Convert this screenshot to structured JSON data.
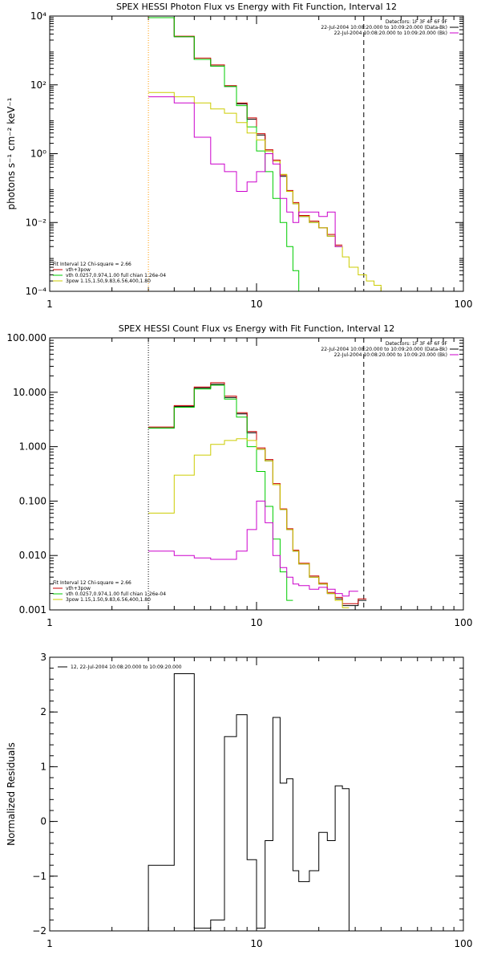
{
  "chart_data": [
    {
      "type": "line",
      "subtype": "histogram-step",
      "title": "SPEX HESSI Photon Flux vs Energy with Fit Function, Interval 12",
      "ylabel": "photons s⁻¹ cm⁻² keV⁻¹",
      "xlabel": "",
      "xscale": "log",
      "yscale": "log",
      "xlim": [
        1,
        100
      ],
      "ylim": [
        0.0001,
        10000
      ],
      "x_tick_labels": [
        "1",
        "10",
        "100"
      ],
      "y_tick_labels": [
        "10⁻⁴",
        "10⁻²",
        "10⁰",
        "10²",
        "10⁴"
      ],
      "info_lines": [
        "Detectors: 1F 3F 4F 6F 9F",
        "22-Jul-2004 10:08:20.000 to 10:09:20.000 (Data-Bk)",
        "22-Jul-2004 10:08:20.000 to 10:09:20.000 (Bk)"
      ],
      "info_colors": [
        "#000000",
        "#000000",
        "#cc00cc"
      ],
      "legend_lines": [
        "Fit Interval 12   Chi-square = 2.66",
        "vth+3pow",
        "vth 0.0257,0.974,1.00  full chian 1.26e-04",
        "3pow 1.15,1.50,9.83,6.56,400,1.80"
      ],
      "legend_colors": [
        "#000000",
        "#cc0000",
        "#00cc00",
        "#cccc00"
      ],
      "vlines": [
        {
          "x": 3,
          "style": "dotted",
          "color": "#ff9900"
        },
        {
          "x": 33,
          "style": "dashed",
          "color": "#000000"
        }
      ],
      "edges": [
        3,
        4,
        5,
        6,
        7,
        8,
        9,
        10,
        11,
        12,
        13,
        14,
        15,
        16,
        18,
        20,
        22,
        24,
        26,
        28,
        31,
        34,
        37,
        40,
        45,
        50,
        60
      ],
      "series": [
        {
          "color": "#000000",
          "values": [
            9000,
            2500,
            550,
            350,
            90,
            28,
            10,
            3.5,
            1.2,
            0.6,
            0.22,
            0.08,
            0.035,
            0.015,
            0.01,
            0.007,
            0.004,
            0.002
          ]
        },
        {
          "color": "#cc0000",
          "values": [
            9000,
            2600,
            600,
            380,
            95,
            30,
            11,
            3.8,
            1.3,
            0.65,
            0.24,
            0.085,
            0.038,
            0.016,
            0.011,
            0.007,
            0.0045,
            0.0022
          ]
        },
        {
          "color": "#00cc00",
          "values": [
            9000,
            2500,
            550,
            350,
            90,
            25,
            6,
            1.2,
            0.3,
            0.05,
            0.01,
            0.002,
            0.0004,
            0.0001
          ]
        },
        {
          "color": "#cccc00",
          "values": [
            60,
            45,
            30,
            20,
            15,
            8,
            4,
            2.5,
            1.2,
            0.6,
            0.25,
            0.08,
            0.035,
            0.015,
            0.01,
            0.007,
            0.004,
            0.002,
            0.001,
            0.0005,
            0.0003,
            0.0002,
            0.00015,
            0.0001,
            7e-05,
            5e-05
          ]
        },
        {
          "color": "#cc00cc",
          "values": [
            45,
            30,
            3,
            0.5,
            0.3,
            0.08,
            0.15,
            0.3,
            1,
            0.5,
            0.05,
            0.02,
            0.01,
            0.02,
            0.02,
            0.015,
            0.02,
            0.002
          ]
        }
      ]
    },
    {
      "type": "line",
      "subtype": "histogram-step",
      "title": "SPEX HESSI Count Flux vs Energy with Fit Function, Interval 12",
      "ylabel": "",
      "xlabel": "",
      "xscale": "log",
      "yscale": "log",
      "xlim": [
        1,
        100
      ],
      "ylim": [
        0.001,
        100
      ],
      "x_tick_labels": [
        "1",
        "10",
        "100"
      ],
      "y_tick_labels": [
        "0.001",
        "0.010",
        "0.100",
        "1.000",
        "10.000",
        "100.000"
      ],
      "info_lines": [
        "Detectors: 1F 3F 4F 6F 9F",
        "22-Jul-2004 10:08:20.000 to 10:09:20.000 (Data-Bk)",
        "22-Jul-2004 10:08:20.000 to 10:09:20.000 (Bk)"
      ],
      "info_colors": [
        "#000000",
        "#000000",
        "#cc00cc"
      ],
      "legend_lines": [
        "Fit Interval 12   Chi-square = 2.66",
        "vth+3pow",
        "vth 0.0257,0.974,1.00  full chian 1.26e-04",
        "3pow 1.15,1.50,9.83,6.56,400,1.80"
      ],
      "legend_colors": [
        "#000000",
        "#cc0000",
        "#00cc00",
        "#cccc00"
      ],
      "vlines": [
        {
          "x": 3,
          "style": "dotted",
          "color": "#000000"
        },
        {
          "x": 33,
          "style": "dashed",
          "color": "#000000"
        }
      ],
      "edges": [
        3,
        4,
        5,
        6,
        7,
        8,
        9,
        10,
        11,
        12,
        13,
        14,
        15,
        16,
        18,
        20,
        22,
        24,
        26,
        28,
        31,
        34
      ],
      "series": [
        {
          "color": "#000000",
          "values": [
            2.2,
            5.5,
            12,
            14,
            8,
            4,
            1.8,
            0.9,
            0.55,
            0.2,
            0.07,
            0.03,
            0.012,
            0.007,
            0.004,
            0.003,
            0.002,
            0.0016,
            0.0012,
            0.0012,
            0.0015
          ]
        },
        {
          "color": "#cc0000",
          "values": [
            2.3,
            5.7,
            12.5,
            15,
            8.5,
            4.2,
            1.9,
            0.95,
            0.58,
            0.21,
            0.072,
            0.031,
            0.0125,
            0.0072,
            0.0042,
            0.0031,
            0.0021,
            0.0017,
            0.0013,
            0.0013,
            0.0016
          ]
        },
        {
          "color": "#00cc00",
          "values": [
            2.2,
            5.3,
            11.5,
            13.5,
            7.5,
            3.5,
            1,
            0.35,
            0.08,
            0.02,
            0.005,
            0.0015
          ]
        },
        {
          "color": "#cccc00",
          "values": [
            0.06,
            0.3,
            0.7,
            1.1,
            1.3,
            1.4,
            1.3,
            0.9,
            0.55,
            0.2,
            0.07,
            0.03,
            0.012,
            0.007,
            0.004,
            0.003,
            0.002,
            0.0015,
            0.0011
          ]
        },
        {
          "color": "#cc00cc",
          "values": [
            0.012,
            0.01,
            0.009,
            0.0085,
            0.0085,
            0.012,
            0.03,
            0.1,
            0.04,
            0.01,
            0.006,
            0.004,
            0.003,
            0.0028,
            0.0024,
            0.0026,
            0.0024,
            0.002,
            0.0018,
            0.0022
          ]
        }
      ]
    },
    {
      "type": "line",
      "subtype": "histogram-step",
      "title": "",
      "ylabel": "Normalized Residuals",
      "xlabel": "",
      "xscale": "log",
      "yscale": "linear",
      "xlim": [
        1,
        100
      ],
      "ylim": [
        -2,
        3
      ],
      "x_tick_labels": [
        "1",
        "10",
        "100"
      ],
      "y_tick_labels": [
        "−2",
        "−1",
        "0",
        "1",
        "2",
        "3"
      ],
      "legend_lines": [
        "12, 22-Jul-2004 10:08:20.000 to 10:09:20.000"
      ],
      "legend_colors": [
        "#000000"
      ],
      "edges": [
        3,
        4,
        5,
        6,
        7,
        8,
        9,
        10,
        11,
        12,
        13,
        14,
        15,
        16,
        18,
        20,
        22,
        24,
        26,
        28,
        31,
        34
      ],
      "series": [
        {
          "color": "#000000",
          "values": [
            -0.8,
            2.7,
            -1.95,
            -1.8,
            1.55,
            1.95,
            -0.7,
            -1.95,
            -0.35,
            1.9,
            0.7,
            0.78,
            -0.9,
            -1.1,
            -0.9,
            -0.2,
            -0.35,
            0.65,
            0.6,
            -2
          ]
        }
      ]
    }
  ]
}
